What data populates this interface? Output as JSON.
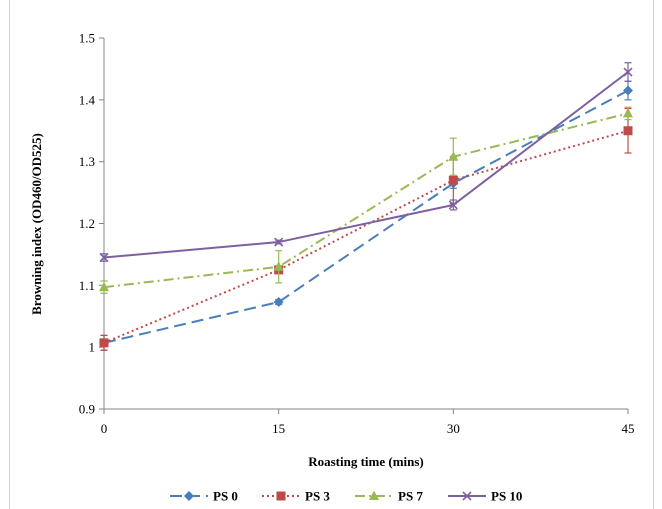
{
  "chart_data": {
    "type": "line",
    "title": "",
    "xlabel": "Roasting time (mins)",
    "ylabel": "Browning index (OD460/OD525)",
    "x": [
      0,
      15,
      30,
      45
    ],
    "x_tick_labels": [
      "0",
      "15",
      "30",
      "45"
    ],
    "y_tick_labels": [
      "0.9",
      "1",
      "1.1",
      "1.2",
      "1.3",
      "1.4",
      "1.5"
    ],
    "ylim": [
      0.9,
      1.5
    ],
    "y_ticks": [
      0.9,
      1.0,
      1.1,
      1.2,
      1.3,
      1.4,
      1.5
    ],
    "grid": false,
    "legend_position": "bottom",
    "series": [
      {
        "name": "PS 0",
        "values": [
          1.007,
          1.073,
          1.265,
          1.415
        ],
        "errors": [
          0.012,
          0.004,
          0.008,
          0.015
        ],
        "color": "#4a7ebb",
        "dash": "dash",
        "marker": "diamond"
      },
      {
        "name": "PS 3",
        "values": [
          1.007,
          1.125,
          1.27,
          1.35
        ],
        "errors": [
          0.012,
          0.006,
          0.038,
          0.036
        ],
        "color": "#be4b48",
        "dash": "dot",
        "marker": "square"
      },
      {
        "name": "PS 7",
        "values": [
          1.097,
          1.13,
          1.308,
          1.378
        ],
        "errors": [
          0.01,
          0.026,
          0.03,
          0.01
        ],
        "color": "#98b954",
        "dash": "dashdot",
        "marker": "triangle"
      },
      {
        "name": "PS 10",
        "values": [
          1.145,
          1.17,
          1.23,
          1.445
        ],
        "errors": [
          0.006,
          0.003,
          0.008,
          0.015
        ],
        "color": "#7d60a0",
        "dash": "solid",
        "marker": "x"
      }
    ]
  }
}
